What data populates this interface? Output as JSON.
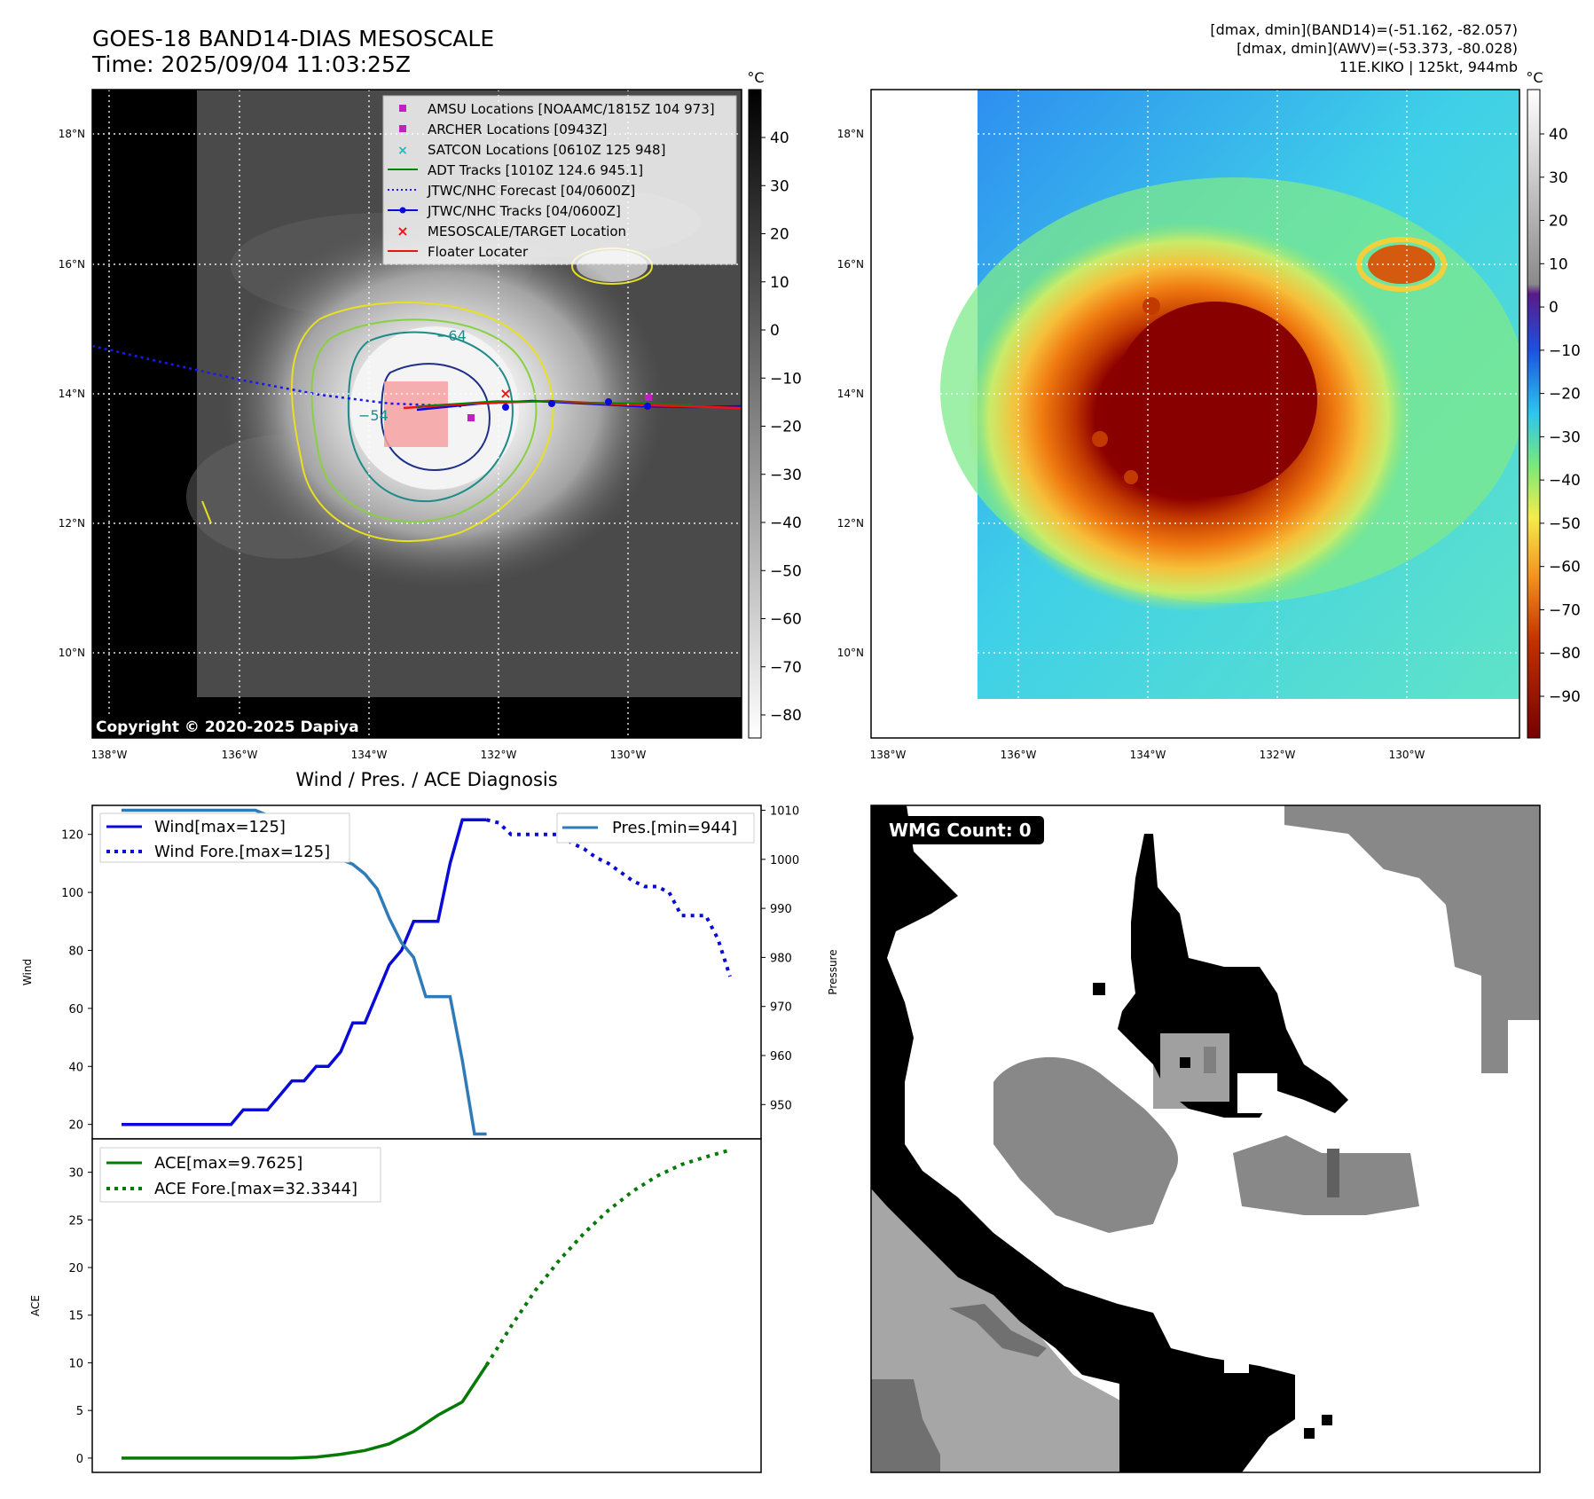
{
  "header": {
    "title": "GOES-18 BAND14-DIAS MESOSCALE",
    "time": "Time: 2025/09/04 11:03:25Z",
    "dmax_band14": "[dmax, dmin](BAND14)=(-51.162, -82.057)",
    "dmax_awv": "[dmax, dmin](AWV)=(-53.373, -80.028)",
    "storm": "11E.KIKO | 125kt, 944mb"
  },
  "copyright": "Copyright © 2020-2025 Dapiya",
  "colors": {
    "wind": "#0a0ad8",
    "pressure": "#2f7bb8",
    "ace": "#067a06",
    "track_red": "#ee1111"
  },
  "ir_panel": {
    "unit": "°C",
    "colorbar_ticks": [
      "40",
      "30",
      "20",
      "10",
      "0",
      "−10",
      "−20",
      "−30",
      "−40",
      "−50",
      "−60",
      "−70",
      "−80"
    ],
    "contour_label_1": "−64",
    "contour_label_2": "−54",
    "lat_labels": [
      "18°N",
      "16°N",
      "14°N",
      "12°N",
      "10°N"
    ],
    "lon_labels": [
      "138°W",
      "136°W",
      "134°W",
      "132°W",
      "130°W"
    ],
    "legend": [
      "AMSU Locations [NOAAMC/1815Z 104 973]",
      "ARCHER Locations [0943Z]",
      "SATCON Locations [0610Z 125 948]",
      "ADT Tracks [1010Z 124.6 945.1]",
      "JTWC/NHC Forecast [04/0600Z]",
      "JTWC/NHC Tracks [04/0600Z]",
      "MESOSCALE/TARGET Location",
      "Floater Locater"
    ]
  },
  "color_panel": {
    "unit": "°C",
    "colorbar_ticks": [
      "40",
      "30",
      "20",
      "10",
      "0",
      "−10",
      "−20",
      "−30",
      "−40",
      "−50",
      "−60",
      "−70",
      "−80",
      "−90"
    ],
    "lat_labels": [
      "18°N",
      "16°N",
      "14°N",
      "12°N",
      "10°N"
    ],
    "lon_labels": [
      "138°W",
      "136°W",
      "134°W",
      "132°W",
      "130°W"
    ]
  },
  "wmg": {
    "label": "WMG Count: 0"
  },
  "chart_data": [
    {
      "type": "line",
      "title": "Wind / Pres. / ACE Diagnosis",
      "ylabel": "Wind",
      "ylabel_right": "Pressure",
      "x": [
        0,
        1,
        2,
        3,
        4,
        5,
        6,
        7,
        8,
        9,
        10,
        11,
        12,
        13,
        14,
        15,
        16,
        17,
        18,
        19,
        20,
        21,
        22,
        23,
        24,
        25,
        26,
        27,
        28,
        29,
        30,
        31,
        32,
        33,
        34,
        35,
        36,
        37,
        38,
        39,
        40,
        41,
        42,
        43,
        44,
        45,
        46,
        47,
        48,
        49,
        50
      ],
      "ylim": [
        15,
        130
      ],
      "ylim_right": [
        943,
        1011
      ],
      "y_ticks": [
        "20",
        "40",
        "60",
        "80",
        "100",
        "120"
      ],
      "y_ticks_right": [
        "950",
        "960",
        "970",
        "980",
        "990",
        "1000",
        "1010"
      ],
      "series": [
        {
          "name": "Wind[max=125]",
          "style": "solid",
          "x": [
            0,
            1,
            2,
            3,
            4,
            5,
            6,
            7,
            8,
            9,
            10,
            11,
            12,
            13,
            14,
            15,
            16,
            17,
            18,
            19,
            20,
            21,
            22,
            23,
            24,
            25,
            26,
            27,
            28,
            29,
            30
          ],
          "values": [
            20,
            20,
            20,
            20,
            20,
            20,
            20,
            20,
            20,
            20,
            25,
            25,
            25,
            30,
            35,
            35,
            40,
            40,
            45,
            55,
            55,
            65,
            75,
            80,
            90,
            90,
            90,
            110,
            125,
            125,
            125
          ]
        },
        {
          "name": "Wind Fore.[max=125]",
          "style": "dotted",
          "x": [
            30,
            31,
            32,
            33,
            34,
            35,
            36,
            37,
            38,
            39,
            40,
            41,
            42,
            43,
            44,
            45,
            46,
            47,
            48,
            49,
            50
          ],
          "values": [
            125,
            124,
            120,
            120,
            120,
            120,
            120,
            117,
            115,
            112,
            110,
            107,
            104,
            102,
            102,
            100,
            92,
            92,
            92,
            84,
            71
          ]
        },
        {
          "name": "Pres.[min=944]",
          "style": "solid",
          "axis": "right",
          "x": [
            0,
            1,
            2,
            3,
            4,
            5,
            6,
            7,
            8,
            9,
            10,
            11,
            12,
            13,
            14,
            15,
            16,
            17,
            18,
            19,
            20,
            21,
            22,
            23,
            24,
            25,
            26,
            27,
            28,
            29,
            30
          ],
          "values": [
            1010,
            1010,
            1010,
            1010,
            1010,
            1010,
            1010,
            1010,
            1010,
            1010,
            1010,
            1010,
            1009,
            1008,
            1007,
            1006,
            1004,
            1003,
            1000,
            999,
            997,
            994,
            988,
            983,
            980,
            972,
            972,
            972,
            959,
            944,
            944
          ]
        }
      ]
    },
    {
      "type": "line",
      "ylabel": "ACE",
      "ylim": [
        -1.5,
        33.5
      ],
      "y_ticks": [
        "0",
        "5",
        "10",
        "15",
        "20",
        "25",
        "30"
      ],
      "series": [
        {
          "name": "ACE[max=9.7625]",
          "style": "solid",
          "x": [
            0,
            2,
            4,
            6,
            8,
            10,
            12,
            14,
            16,
            18,
            20,
            22,
            24,
            26,
            28,
            30
          ],
          "values": [
            0,
            0,
            0,
            0,
            0,
            0,
            0,
            0,
            0.1,
            0.4,
            0.8,
            1.5,
            2.8,
            4.5,
            5.9,
            9.76
          ]
        },
        {
          "name": "ACE Fore.[max=32.3344]",
          "style": "dotted",
          "x": [
            30,
            32,
            34,
            36,
            38,
            40,
            42,
            44,
            46,
            48,
            50
          ],
          "values": [
            9.76,
            13.8,
            17.6,
            20.8,
            23.6,
            26.0,
            28.0,
            29.6,
            30.8,
            31.6,
            32.33
          ]
        }
      ]
    }
  ]
}
